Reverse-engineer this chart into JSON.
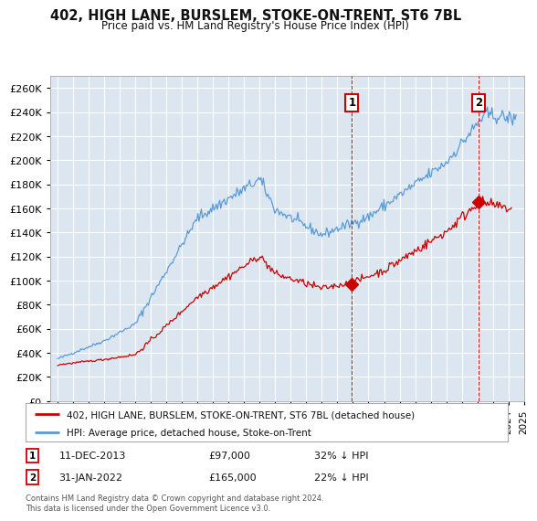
{
  "title": "402, HIGH LANE, BURSLEM, STOKE-ON-TRENT, ST6 7BL",
  "subtitle": "Price paid vs. HM Land Registry's House Price Index (HPI)",
  "ylim": [
    0,
    270000
  ],
  "yticks": [
    0,
    20000,
    40000,
    60000,
    80000,
    100000,
    120000,
    140000,
    160000,
    180000,
    200000,
    220000,
    240000,
    260000
  ],
  "background_color": "#ffffff",
  "plot_bg_color": "#dce6f1",
  "grid_color": "#ffffff",
  "purchase1": {
    "date_num": 2013.94,
    "price": 97000,
    "label": "1",
    "date_str": "11-DEC-2013",
    "pct": "32% ↓ HPI"
  },
  "purchase2": {
    "date_num": 2022.08,
    "price": 165000,
    "label": "2",
    "date_str": "31-JAN-2022",
    "pct": "22% ↓ HPI"
  },
  "legend_entry1": "402, HIGH LANE, BURSLEM, STOKE-ON-TRENT, ST6 7BL (detached house)",
  "legend_entry2": "HPI: Average price, detached house, Stoke-on-Trent",
  "footer": "Contains HM Land Registry data © Crown copyright and database right 2024.\nThis data is licensed under the Open Government Licence v3.0.",
  "red_color": "#cc0000",
  "blue_color": "#5b9bd5",
  "fill_color": "#c5d9f1",
  "vline_color": "#cc0000",
  "xlim_left": 1994.5,
  "xlim_right": 2025.0,
  "xticks_start": 1995,
  "xticks_end": 2025
}
